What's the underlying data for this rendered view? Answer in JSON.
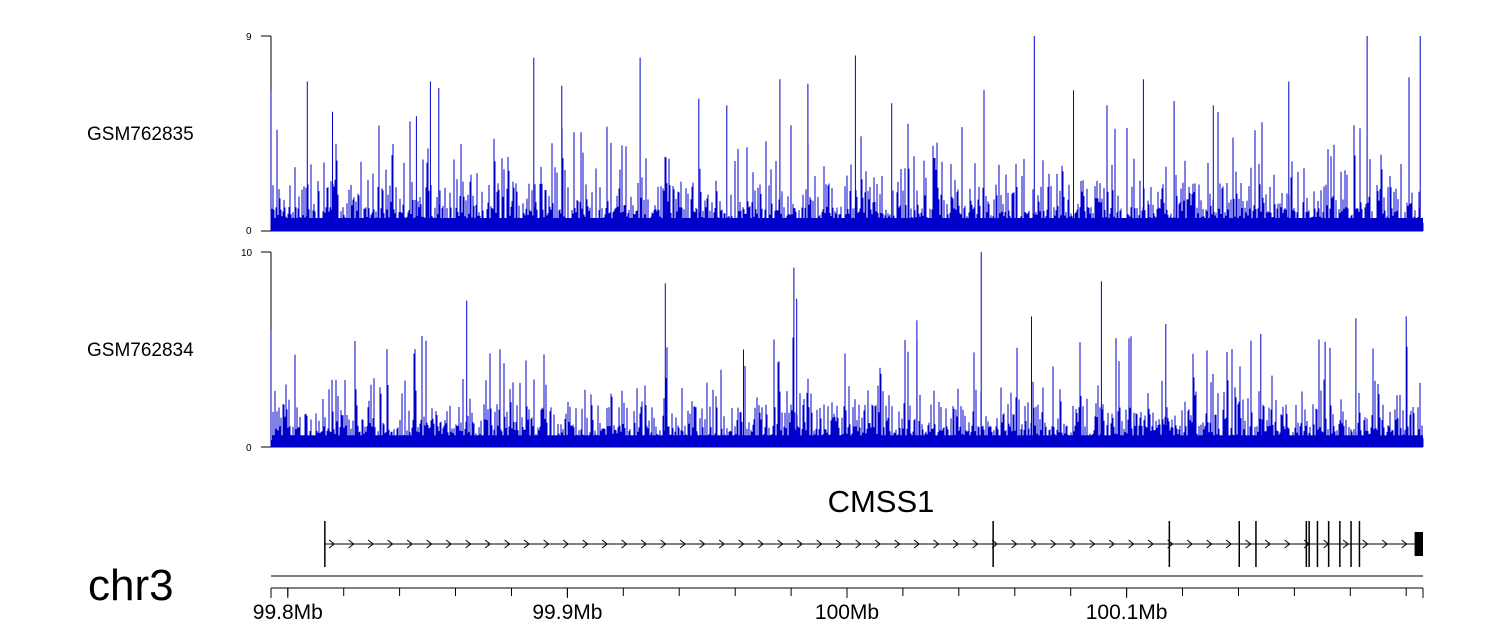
{
  "chart_data": {
    "type": "bar",
    "chromosome": "chr3",
    "x_unit": "Mb",
    "xlim": [
      99.794,
      100.206
    ],
    "x_ticks": [
      {
        "value": 99.8,
        "label": "99.8Mb"
      },
      {
        "value": 99.9,
        "label": "99.9Mb"
      },
      {
        "value": 100.0,
        "label": "100Mb"
      },
      {
        "value": 100.1,
        "label": "100.1Mb"
      }
    ],
    "colors": {
      "signal": "#0000cc",
      "axis": "#000000",
      "gene": "#000000"
    },
    "tracks": [
      {
        "name": "GSM762835",
        "ylim": [
          0,
          9
        ],
        "y_ticks": [
          "0",
          "9"
        ],
        "peaks": [
          [
            99.794,
            6.5
          ],
          [
            99.807,
            6.9
          ],
          [
            99.816,
            5.5
          ],
          [
            99.846,
            5.3
          ],
          [
            99.851,
            6.9
          ],
          [
            99.854,
            6.6
          ],
          [
            99.888,
            8.0
          ],
          [
            99.898,
            6.7
          ],
          [
            99.926,
            8.0
          ],
          [
            99.947,
            6.1
          ],
          [
            99.957,
            5.8
          ],
          [
            99.976,
            7.0
          ],
          [
            99.986,
            6.8
          ],
          [
            100.003,
            8.1
          ],
          [
            100.016,
            5.9
          ],
          [
            100.049,
            6.5
          ],
          [
            100.067,
            9.0
          ],
          [
            100.081,
            6.5
          ],
          [
            100.093,
            5.8
          ],
          [
            100.106,
            7.0
          ],
          [
            100.117,
            6.0
          ],
          [
            100.131,
            5.8
          ],
          [
            100.158,
            6.9
          ],
          [
            100.186,
            9.0
          ],
          [
            100.201,
            7.1
          ],
          [
            100.205,
            9.0
          ]
        ]
      },
      {
        "name": "GSM762834",
        "ylim": [
          0,
          10
        ],
        "y_ticks": [
          "0",
          "10"
        ],
        "peaks": [
          [
            99.794,
            6.0
          ],
          [
            99.864,
            7.5
          ],
          [
            99.935,
            8.4
          ],
          [
            99.963,
            5.0
          ],
          [
            99.981,
            9.2
          ],
          [
            99.982,
            7.6
          ],
          [
            100.025,
            6.5
          ],
          [
            100.048,
            10.0
          ],
          [
            100.066,
            6.7
          ],
          [
            100.091,
            8.5
          ],
          [
            100.114,
            6.3
          ],
          [
            100.148,
            5.8
          ],
          [
            100.171,
            5.4
          ],
          [
            100.182,
            6.6
          ],
          [
            100.2,
            6.7
          ]
        ]
      }
    ],
    "genes": [
      {
        "name": "CMSS1",
        "strand": "+",
        "start": 99.813,
        "end": 100.206,
        "exons": [
          [
            99.813,
            99.8132
          ],
          [
            100.052,
            100.0522
          ],
          [
            100.115,
            100.1152
          ],
          [
            100.14,
            100.1402
          ],
          [
            100.146,
            100.1462
          ],
          [
            100.164,
            100.1643
          ],
          [
            100.165,
            100.1653
          ],
          [
            100.168,
            100.1682
          ],
          [
            100.172,
            100.1722
          ],
          [
            100.176,
            100.1762
          ],
          [
            100.18,
            100.1802
          ],
          [
            100.183,
            100.1832
          ],
          [
            100.203,
            100.206
          ]
        ]
      }
    ]
  }
}
